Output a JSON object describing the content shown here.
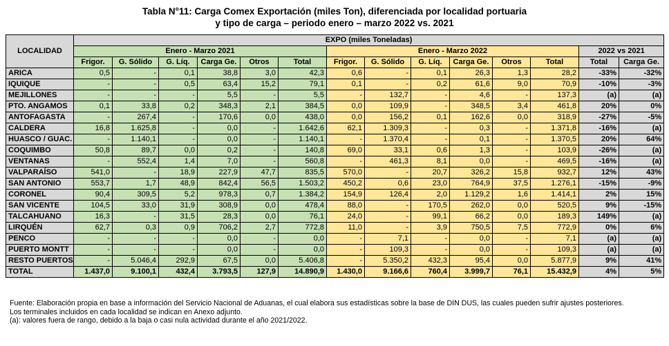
{
  "title_line1": "Tabla N°11: Carga Comex Exportación (miles Ton), diferenciada por localidad portuaria",
  "title_line2": "y tipo de carga – periodo enero – marzo 2022 vs. 2021",
  "header": {
    "localidad": "LOCALIDAD",
    "expo": "EXPO (miles Toneladas)",
    "period_2021": "Enero - Marzo 2021",
    "period_2022": "Enero - Marzo 2022",
    "comparison": "2022 vs 2021",
    "cols": [
      "Frigor.",
      "G. Sólido",
      "G. Líq.",
      "Carga Ge.",
      "Otros",
      "Total"
    ],
    "cmp_cols": [
      "Total",
      "Carga Ge."
    ]
  },
  "rows": [
    {
      "name": "ARICA",
      "v2021": [
        "0,5",
        "-",
        "0,1",
        "38,8",
        "3,0",
        "42,3"
      ],
      "v2022": [
        "0,6",
        "-",
        "0,1",
        "26,3",
        "1,3",
        "28,2"
      ],
      "cmp": [
        "-33%",
        "-32%"
      ]
    },
    {
      "name": "IQUIQUE",
      "v2021": [
        "-",
        "-",
        "0,5",
        "63,4",
        "15,2",
        "79,1"
      ],
      "v2022": [
        "0,1",
        "-",
        "0,2",
        "61,6",
        "9,0",
        "70,9"
      ],
      "cmp": [
        "-10%",
        "-3%"
      ]
    },
    {
      "name": "MEJILLONES",
      "v2021": [
        "-",
        "-",
        "-",
        "5,5",
        "-",
        "5,5"
      ],
      "v2022": [
        "-",
        "132,7",
        "-",
        "4,6",
        "-",
        "137,3"
      ],
      "cmp": [
        "(a)",
        "(a)"
      ]
    },
    {
      "name": "PTO. ANGAMOS",
      "v2021": [
        "0,1",
        "33,8",
        "0,2",
        "348,3",
        "2,1",
        "384,5"
      ],
      "v2022": [
        "0,0",
        "109,9",
        "-",
        "348,5",
        "3,4",
        "461,8"
      ],
      "cmp": [
        "20%",
        "0%"
      ]
    },
    {
      "name": "ANTOFAGASTA",
      "v2021": [
        "-",
        "267,4",
        "-",
        "170,6",
        "0,0",
        "438,0"
      ],
      "v2022": [
        "0,0",
        "156,2",
        "0,1",
        "162,6",
        "0,0",
        "318,9"
      ],
      "cmp": [
        "-27%",
        "-5%"
      ]
    },
    {
      "name": "CALDERA",
      "v2021": [
        "16,8",
        "1.625,8",
        "-",
        "0,0",
        "-",
        "1.642,6"
      ],
      "v2022": [
        "62,1",
        "1.309,3",
        "-",
        "0,3",
        "-",
        "1.371,8"
      ],
      "cmp": [
        "-16%",
        "(a)"
      ]
    },
    {
      "name": "HUASCO / GUAC.",
      "v2021": [
        "-",
        "1.140,1",
        "-",
        "0,0",
        "-",
        "1.140,1"
      ],
      "v2022": [
        "-",
        "1.370,4",
        "-",
        "0,1",
        "-",
        "1.370,5"
      ],
      "cmp": [
        "20%",
        "64%"
      ]
    },
    {
      "name": "COQUIMBO",
      "v2021": [
        "50,8",
        "89,7",
        "0,0",
        "0,2",
        "-",
        "140,8"
      ],
      "v2022": [
        "69,0",
        "33,1",
        "0,6",
        "1,3",
        "-",
        "103,9"
      ],
      "cmp": [
        "-26%",
        "(a)"
      ]
    },
    {
      "name": "VENTANAS",
      "v2021": [
        "-",
        "552,4",
        "1,4",
        "7,0",
        "-",
        "560,8"
      ],
      "v2022": [
        "-",
        "461,3",
        "8,1",
        "0,0",
        "-",
        "469,5"
      ],
      "cmp": [
        "-16%",
        "(a)"
      ]
    },
    {
      "name": "VALPARAÍSO",
      "v2021": [
        "541,0",
        "-",
        "18,9",
        "227,9",
        "47,7",
        "835,5"
      ],
      "v2022": [
        "570,0",
        "-",
        "20,7",
        "326,2",
        "15,8",
        "932,7"
      ],
      "cmp": [
        "12%",
        "43%"
      ]
    },
    {
      "name": "SAN ANTONIO",
      "v2021": [
        "553,7",
        "1,7",
        "48,9",
        "842,4",
        "56,5",
        "1.503,2"
      ],
      "v2022": [
        "450,2",
        "0,6",
        "23,0",
        "764,9",
        "37,5",
        "1.276,1"
      ],
      "cmp": [
        "-15%",
        "-9%"
      ]
    },
    {
      "name": "CORONEL",
      "v2021": [
        "90,4",
        "309,5",
        "5,2",
        "978,3",
        "0,7",
        "1.384,2"
      ],
      "v2022": [
        "154,9",
        "126,4",
        "2,0",
        "1.129,2",
        "1,6",
        "1.414,1"
      ],
      "cmp": [
        "2%",
        "15%"
      ]
    },
    {
      "name": "SAN VICENTE",
      "v2021": [
        "104,5",
        "33,0",
        "31,9",
        "308,9",
        "0,0",
        "478,4"
      ],
      "v2022": [
        "88,0",
        "-",
        "170,5",
        "262,0",
        "0,0",
        "520,5"
      ],
      "cmp": [
        "9%",
        "-15%"
      ]
    },
    {
      "name": "TALCAHUANO",
      "v2021": [
        "16,3",
        "-",
        "31,5",
        "28,3",
        "0,0",
        "76,1"
      ],
      "v2022": [
        "24,0",
        "-",
        "99,1",
        "66,2",
        "0,0",
        "189,3"
      ],
      "cmp": [
        "149%",
        "(a)"
      ]
    },
    {
      "name": "LIRQUÉN",
      "v2021": [
        "62,7",
        "0,3",
        "0,9",
        "706,2",
        "2,7",
        "772,8"
      ],
      "v2022": [
        "11,0",
        "-",
        "3,9",
        "750,5",
        "7,5",
        "772,9"
      ],
      "cmp": [
        "0%",
        "6%"
      ]
    },
    {
      "name": "PENCO",
      "v2021": [
        "-",
        "-",
        "-",
        "0,0",
        "-",
        "0,0"
      ],
      "v2022": [
        "-",
        "7,1",
        "-",
        "0,0",
        "-",
        "7,1"
      ],
      "cmp": [
        "(a)",
        "(a)"
      ]
    },
    {
      "name": "PUERTO MONTT",
      "v2021": [
        "-",
        "-",
        "-",
        "0,0",
        "-",
        "0,0"
      ],
      "v2022": [
        "-",
        "109,3",
        "-",
        "0,0",
        "-",
        "109,3"
      ],
      "cmp": [
        "(a)",
        "(a)"
      ]
    },
    {
      "name": "RESTO PUERTOS",
      "v2021": [
        "-",
        "5.046,4",
        "292,9",
        "67,5",
        "0,0",
        "5.406,8"
      ],
      "v2022": [
        "-",
        "5.350,2",
        "432,3",
        "95,4",
        "0,0",
        "5.877,9"
      ],
      "cmp": [
        "9%",
        "41%"
      ]
    }
  ],
  "total": {
    "name": "TOTAL",
    "v2021": [
      "1.437,0",
      "9.100,1",
      "432,4",
      "3.793,5",
      "127,9",
      "14.890,9"
    ],
    "v2022": [
      "1.430,0",
      "9.166,6",
      "760,4",
      "3.999,7",
      "76,1",
      "15.432,9"
    ],
    "cmp": [
      "4%",
      "5%"
    ]
  },
  "notes": [
    "Fuente: Elaboración propia en base a información del Servicio Nacional de Aduanas, el cual elabora sus estadísticas sobre la base de DIN DUS, las cuales pueden sufrir ajustes posteriores.",
    "Los terminales incluidos en cada localidad se indican en Anexo adjunto.",
    "(a): valores fuera de rango, debido a la baja o casi nula actividad durante el año 2021/2022."
  ]
}
